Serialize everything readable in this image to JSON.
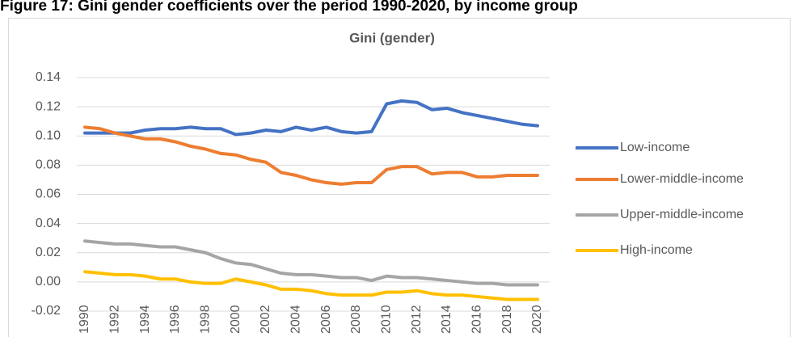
{
  "caption": "Figure 17: Gini gender coefficients over the period 1990-2020, by income group",
  "chart_data": {
    "type": "line",
    "title": "Gini (gender)",
    "categories": [
      "1990",
      null,
      "1992",
      null,
      "1994",
      null,
      "1996",
      null,
      "1998",
      null,
      "2000",
      null,
      "2002",
      null,
      "2004",
      null,
      "2006",
      null,
      "2008",
      null,
      "2010",
      null,
      "2012",
      null,
      "2014",
      null,
      "2016",
      null,
      "2018",
      null,
      "2020"
    ],
    "series": [
      {
        "name": "Low-income",
        "color": "#4472C4",
        "values": [
          0.102,
          0.102,
          0.102,
          0.102,
          0.104,
          0.105,
          0.105,
          0.106,
          0.105,
          0.105,
          0.101,
          0.102,
          0.104,
          0.103,
          0.106,
          0.104,
          0.106,
          0.103,
          0.102,
          0.103,
          0.122,
          0.124,
          0.123,
          0.118,
          0.119,
          0.116,
          0.114,
          0.112,
          0.11,
          0.108,
          0.107
        ]
      },
      {
        "name": "Lower-middle-income",
        "color": "#ED7D31",
        "values": [
          0.106,
          0.105,
          0.102,
          0.1,
          0.098,
          0.098,
          0.096,
          0.093,
          0.091,
          0.088,
          0.087,
          0.084,
          0.082,
          0.075,
          0.073,
          0.07,
          0.068,
          0.067,
          0.068,
          0.068,
          0.077,
          0.079,
          0.079,
          0.074,
          0.075,
          0.075,
          0.072,
          0.072,
          0.073,
          0.073,
          0.073
        ]
      },
      {
        "name": "Upper-middle-income",
        "color": "#A5A5A5",
        "values": [
          0.028,
          0.027,
          0.026,
          0.026,
          0.025,
          0.024,
          0.024,
          0.022,
          0.02,
          0.016,
          0.013,
          0.012,
          0.009,
          0.006,
          0.005,
          0.005,
          0.004,
          0.003,
          0.003,
          0.001,
          0.004,
          0.003,
          0.003,
          0.002,
          0.001,
          0.0,
          -0.001,
          -0.001,
          -0.002,
          -0.002,
          -0.002
        ]
      },
      {
        "name": "High-income",
        "color": "#FFC000",
        "values": [
          0.007,
          0.006,
          0.005,
          0.005,
          0.004,
          0.002,
          0.002,
          0.0,
          -0.001,
          -0.001,
          0.002,
          0.0,
          -0.002,
          -0.005,
          -0.005,
          -0.006,
          -0.008,
          -0.009,
          -0.009,
          -0.009,
          -0.007,
          -0.007,
          -0.006,
          -0.008,
          -0.009,
          -0.009,
          -0.01,
          -0.011,
          -0.012,
          -0.012,
          -0.012
        ]
      }
    ],
    "ylim": [
      -0.02,
      0.14
    ],
    "yticks": [
      -0.02,
      {
        "value": 0,
        "label": "0.00"
      },
      0.02,
      0.04,
      0.06,
      0.08,
      {
        "value": 0.1,
        "label": "0.10"
      },
      0.12,
      0.14
    ],
    "grid": true,
    "legend": "right"
  }
}
